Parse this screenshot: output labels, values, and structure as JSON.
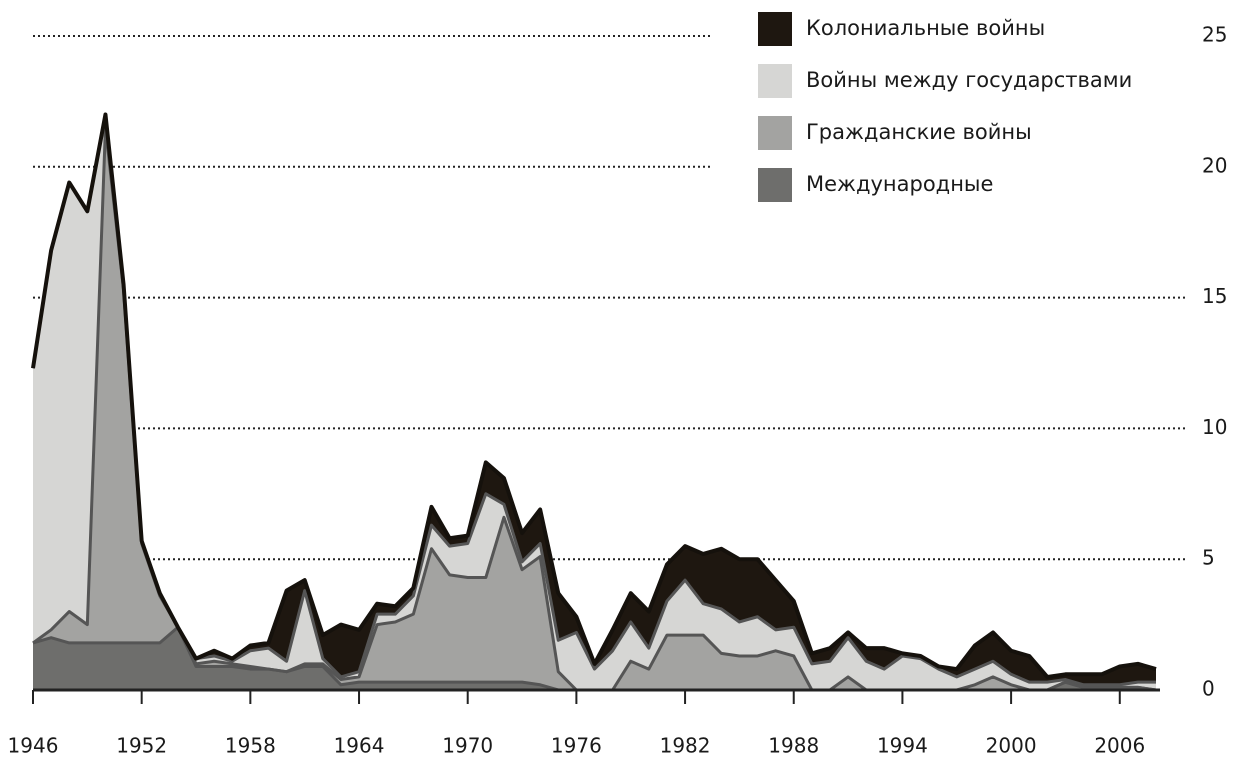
{
  "chart_data": {
    "type": "stacked_area",
    "x": [
      1946,
      1947,
      1948,
      1949,
      1950,
      1951,
      1952,
      1953,
      1954,
      1955,
      1956,
      1957,
      1958,
      1959,
      1960,
      1961,
      1962,
      1963,
      1964,
      1965,
      1966,
      1967,
      1968,
      1969,
      1970,
      1971,
      1972,
      1973,
      1974,
      1975,
      1976,
      1977,
      1978,
      1979,
      1980,
      1981,
      1982,
      1983,
      1984,
      1985,
      1986,
      1987,
      1988,
      1989,
      1990,
      1991,
      1992,
      1993,
      1994,
      1995,
      1996,
      1997,
      1998,
      1999,
      2000,
      2001,
      2002,
      2003,
      2004,
      2005,
      2006,
      2007,
      2008
    ],
    "series": [
      {
        "name": "Колониальные войны",
        "color": "#1e1710",
        "values": [
          0,
          0,
          0,
          0,
          0,
          0,
          0,
          0,
          0,
          0,
          0.2,
          0.1,
          0.2,
          0.2,
          2.7,
          0.4,
          0.9,
          2.0,
          1.6,
          0.4,
          0.3,
          0.3,
          0.7,
          0.3,
          0.3,
          1.2,
          1.0,
          1.1,
          1.3,
          1.8,
          0.6,
          0.2,
          0.8,
          1.1,
          1.4,
          1.4,
          1.3,
          1.9,
          2.3,
          2.4,
          2.2,
          1.9,
          1.0,
          0.4,
          0.5,
          0.2,
          0.5,
          0.8,
          0.1,
          0.1,
          0.1,
          0.3,
          0.9,
          1.1,
          0.9,
          1.0,
          0.2,
          0.2,
          0.4,
          0.4,
          0.7,
          0.7,
          0.5
        ]
      },
      {
        "name": "Войны между государствами",
        "color": "#d6d6d4",
        "values": [
          10.5,
          14.5,
          16.4,
          15.8,
          0.5,
          0.2,
          0.1,
          0.1,
          0,
          0.2,
          0.2,
          0.1,
          0.6,
          0.8,
          0.4,
          2.8,
          0.2,
          0.1,
          0.2,
          0.4,
          0.3,
          0.7,
          0.9,
          1.1,
          1.3,
          3.2,
          0.5,
          0.3,
          0.5,
          1.2,
          2.2,
          0.8,
          1.5,
          1.5,
          0.8,
          1.3,
          2.1,
          1.2,
          1.7,
          1.3,
          1.5,
          0.8,
          1.1,
          1.0,
          1.1,
          1.5,
          1.1,
          0.8,
          1.3,
          1.2,
          0.8,
          0.5,
          0.6,
          0.6,
          0.4,
          0.3,
          0.3,
          0.1,
          0.1,
          0.1,
          0.1,
          0.2,
          0.3
        ]
      },
      {
        "name": "Гражданские войны",
        "color": "#a3a3a1",
        "values": [
          0,
          0.3,
          1.2,
          0.7,
          19.7,
          13.5,
          3.8,
          1.8,
          0,
          0.1,
          0.2,
          0.1,
          0.1,
          0,
          0,
          0.1,
          0.1,
          0.2,
          0.2,
          2.2,
          2.3,
          2.6,
          5.1,
          4.1,
          4.0,
          4.0,
          6.3,
          4.3,
          4.9,
          0.7,
          0,
          0,
          0,
          1.1,
          0.8,
          2.1,
          2.1,
          2.1,
          1.4,
          1.3,
          1.3,
          1.5,
          1.3,
          0,
          0,
          0.5,
          0,
          0,
          0,
          0,
          0,
          0,
          0.2,
          0.5,
          0.2,
          0,
          0,
          0,
          0,
          0,
          0,
          0,
          0
        ]
      },
      {
        "name": "Международные",
        "color": "#6e6e6c",
        "values": [
          1.8,
          2.0,
          1.8,
          1.8,
          1.8,
          1.8,
          1.8,
          1.8,
          2.4,
          0.9,
          0.9,
          0.9,
          0.8,
          0.8,
          0.7,
          0.9,
          0.9,
          0.2,
          0.3,
          0.3,
          0.3,
          0.3,
          0.3,
          0.3,
          0.3,
          0.3,
          0.3,
          0.3,
          0.2,
          0,
          0,
          0,
          0,
          0,
          0,
          0,
          0,
          0,
          0,
          0,
          0,
          0,
          0,
          0,
          0,
          0,
          0,
          0,
          0,
          0,
          0,
          0,
          0,
          0,
          0,
          0,
          0,
          0.3,
          0.1,
          0.1,
          0.1,
          0.1,
          0
        ]
      }
    ],
    "xlim": [
      1946,
      2008
    ],
    "xticks": [
      1946,
      1952,
      1958,
      1964,
      1970,
      1976,
      1982,
      1988,
      1994,
      2000,
      2006
    ],
    "ylim": [
      0,
      25
    ],
    "yticks": [
      0,
      5,
      10,
      15,
      20,
      25
    ],
    "grid": true,
    "legend": "upper right"
  }
}
